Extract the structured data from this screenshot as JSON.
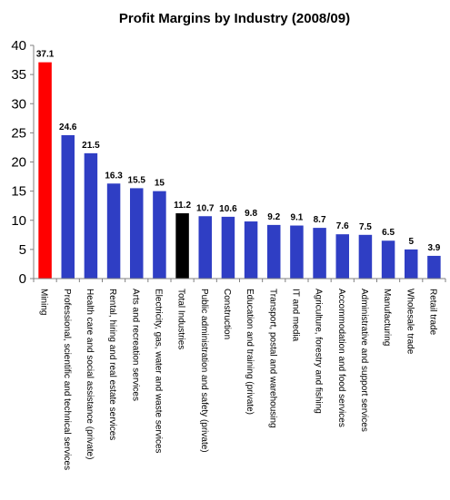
{
  "chart_data": {
    "type": "bar",
    "title": "Profit Margins by Industry (2008/09)",
    "xlabel": "",
    "ylabel": "",
    "ylim": [
      0,
      40
    ],
    "yticks": [
      0,
      5,
      10,
      15,
      20,
      25,
      30,
      35,
      40
    ],
    "grid": false,
    "legend": "none",
    "categories": [
      "Mining",
      "Professional, scientific and technical services",
      "Health care and social assistance (private)",
      "Rental, hiring and real estate services",
      "Arts and recreation services",
      "Electricity, gas, water and waste services",
      "Total Industries",
      "Public administration and safety (private)",
      "Construction",
      "Education and training (private)",
      "Transport, postal and warehousing",
      "IT and media",
      "Agriculture, forestry and fishing",
      "Accommodation and food services",
      "Administrative and support services",
      "Manufacturing",
      "Wholesale trade",
      "Retail trade"
    ],
    "values": [
      37.1,
      24.6,
      21.5,
      16.3,
      15.5,
      15,
      11.2,
      10.7,
      10.6,
      9.8,
      9.2,
      9.1,
      8.7,
      7.6,
      7.5,
      6.5,
      5,
      3.9
    ],
    "data_labels": [
      "37.1",
      "24.6",
      "21.5",
      "16.3",
      "15.5",
      "15",
      "11.2",
      "10.7",
      "10.6",
      "9.8",
      "9.2",
      "9.1",
      "8.7",
      "7.6",
      "7.5",
      "6.5",
      "5",
      "3.9"
    ],
    "colors": {
      "default": "#2f3ec4",
      "highlight_mining": "#ff0000",
      "highlight_total": "#000000",
      "axis": "#808080"
    },
    "bar_colors": [
      "#ff0000",
      "#2f3ec4",
      "#2f3ec4",
      "#2f3ec4",
      "#2f3ec4",
      "#2f3ec4",
      "#000000",
      "#2f3ec4",
      "#2f3ec4",
      "#2f3ec4",
      "#2f3ec4",
      "#2f3ec4",
      "#2f3ec4",
      "#2f3ec4",
      "#2f3ec4",
      "#2f3ec4",
      "#2f3ec4",
      "#2f3ec4"
    ]
  }
}
